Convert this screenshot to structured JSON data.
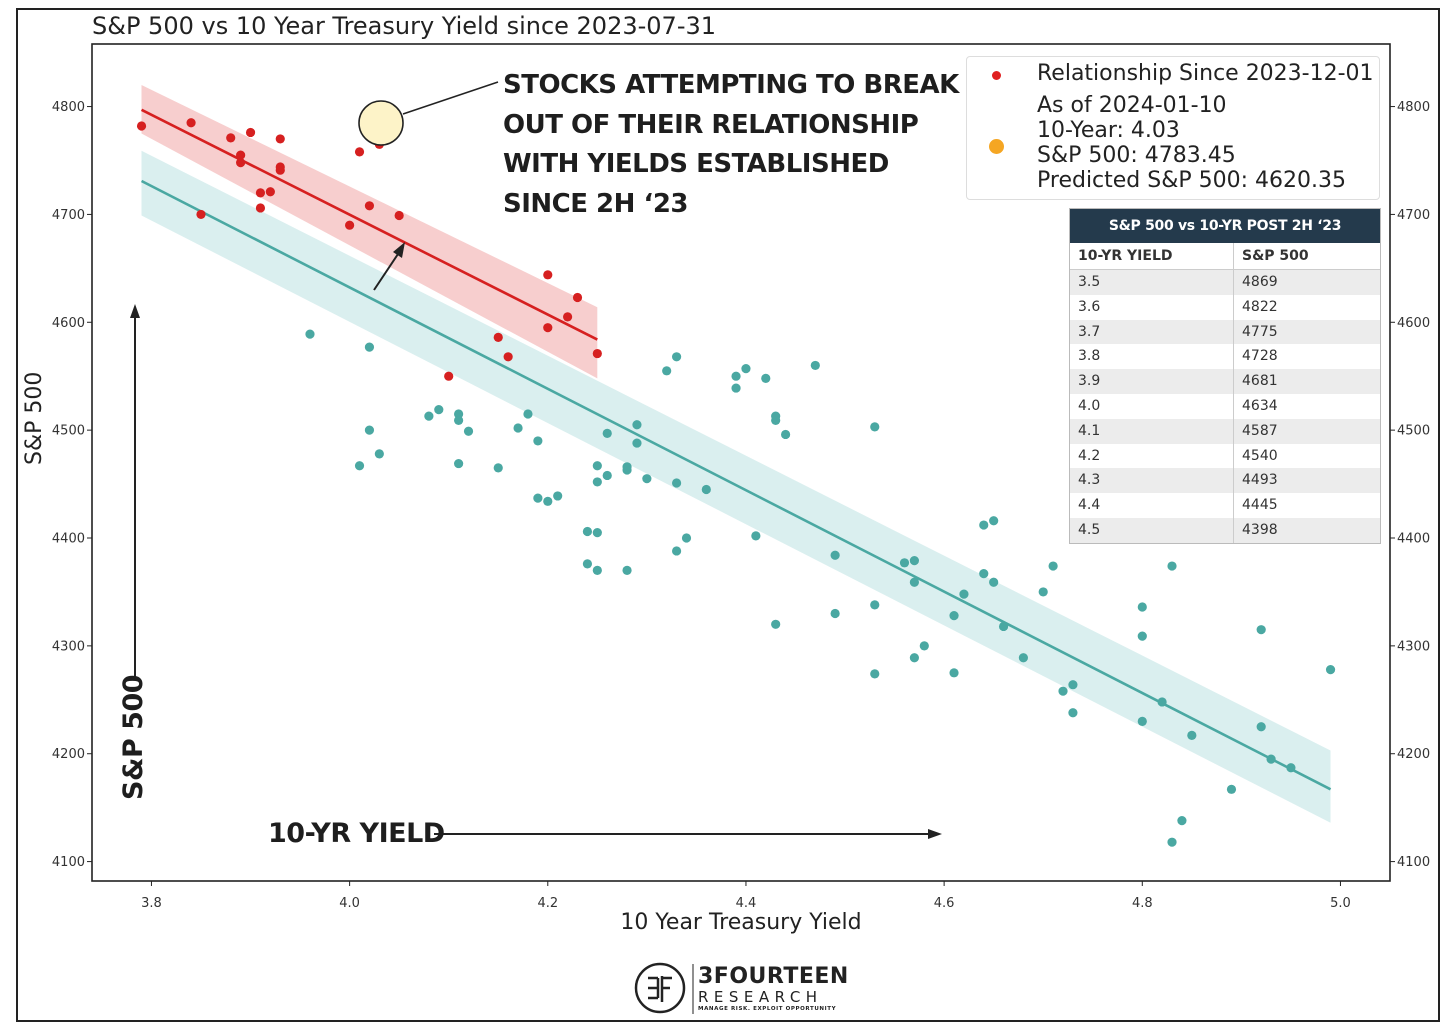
{
  "title": "S&P 500 vs 10 Year Treasury Yield since 2023-07-31",
  "annotation_lines": [
    "STOCKS ATTEMPTING TO BREAK",
    "OUT OF THEIR RELATIONSHIP",
    "WITH YIELDS ESTABLISHED",
    "SINCE 2H ‘23"
  ],
  "arrow_label_x": "10-YR YIELD",
  "arrow_label_y": "S&P 500",
  "legend": {
    "red_label": "Relationship Since 2023-12-01",
    "lines": [
      "As of 2024-01-10",
      "10-Year: 4.03",
      "S&P 500: 4783.45",
      "Predicted S&P 500: 4620.35"
    ]
  },
  "table": {
    "title": "S&P 500 vs 10-YR POST 2H ‘23",
    "headers": [
      "10-YR YIELD",
      "S&P 500"
    ],
    "rows": [
      [
        "3.5",
        "4869"
      ],
      [
        "3.6",
        "4822"
      ],
      [
        "3.7",
        "4775"
      ],
      [
        "3.8",
        "4728"
      ],
      [
        "3.9",
        "4681"
      ],
      [
        "4.0",
        "4634"
      ],
      [
        "4.1",
        "4587"
      ],
      [
        "4.2",
        "4540"
      ],
      [
        "4.3",
        "4493"
      ],
      [
        "4.4",
        "4445"
      ],
      [
        "4.5",
        "4398"
      ]
    ]
  },
  "logo": {
    "name": "3FOURTEEN",
    "sub": "RESEARCH",
    "tagline": "MANAGE RISK. EXPLOIT OPPORTUNITY"
  },
  "chart_data": {
    "type": "scatter",
    "title": "S&P 500 vs 10 Year Treasury Yield since 2023-07-31",
    "xlabel": "10 Year Treasury Yield",
    "ylabel": "S&P 500",
    "xlim": [
      3.74,
      5.05
    ],
    "ylim": [
      4082,
      4858
    ],
    "xticks": [
      3.8,
      4.0,
      4.2,
      4.4,
      4.6,
      4.8,
      5.0
    ],
    "yticks": [
      4100,
      4200,
      4300,
      4400,
      4500,
      4600,
      4700,
      4800
    ],
    "grid": false,
    "legend_position": "top-right",
    "colors": {
      "teal": "#4aa8a2",
      "red": "#d62020",
      "orange": "#f5a623",
      "teal_band": "#cdeaea",
      "red_band": "#f6c6c6"
    },
    "series": [
      {
        "name": "",
        "color": "#4aa8a2",
        "points": [
          [
            3.96,
            4589
          ],
          [
            4.02,
            4577
          ],
          [
            4.02,
            4500
          ],
          [
            4.01,
            4467
          ],
          [
            4.03,
            4478
          ],
          [
            4.08,
            4513
          ],
          [
            4.09,
            4519
          ],
          [
            4.11,
            4509
          ],
          [
            4.11,
            4515
          ],
          [
            4.12,
            4499
          ],
          [
            4.11,
            4469
          ],
          [
            4.15,
            4465
          ],
          [
            4.17,
            4502
          ],
          [
            4.18,
            4515
          ],
          [
            4.19,
            4490
          ],
          [
            4.19,
            4437
          ],
          [
            4.2,
            4434
          ],
          [
            4.21,
            4439
          ],
          [
            4.24,
            4406
          ],
          [
            4.24,
            4376
          ],
          [
            4.25,
            4405
          ],
          [
            4.25,
            4370
          ],
          [
            4.25,
            4452
          ],
          [
            4.25,
            4467
          ],
          [
            4.26,
            4497
          ],
          [
            4.26,
            4458
          ],
          [
            4.28,
            4463
          ],
          [
            4.28,
            4466
          ],
          [
            4.28,
            4370
          ],
          [
            4.29,
            4505
          ],
          [
            4.29,
            4488
          ],
          [
            4.3,
            4455
          ],
          [
            4.32,
            4555
          ],
          [
            4.33,
            4568
          ],
          [
            4.33,
            4451
          ],
          [
            4.33,
            4388
          ],
          [
            4.34,
            4400
          ],
          [
            4.36,
            4445
          ],
          [
            4.39,
            4550
          ],
          [
            4.39,
            4539
          ],
          [
            4.4,
            4557
          ],
          [
            4.41,
            4402
          ],
          [
            4.42,
            4548
          ],
          [
            4.43,
            4513
          ],
          [
            4.43,
            4509
          ],
          [
            4.43,
            4320
          ],
          [
            4.44,
            4496
          ],
          [
            4.47,
            4560
          ],
          [
            4.49,
            4384
          ],
          [
            4.49,
            4330
          ],
          [
            4.53,
            4503
          ],
          [
            4.53,
            4338
          ],
          [
            4.53,
            4274
          ],
          [
            4.56,
            4377
          ],
          [
            4.57,
            4379
          ],
          [
            4.57,
            4359
          ],
          [
            4.57,
            4289
          ],
          [
            4.58,
            4300
          ],
          [
            4.61,
            4275
          ],
          [
            4.61,
            4328
          ],
          [
            4.62,
            4348
          ],
          [
            4.64,
            4412
          ],
          [
            4.64,
            4367
          ],
          [
            4.65,
            4416
          ],
          [
            4.65,
            4359
          ],
          [
            4.66,
            4318
          ],
          [
            4.68,
            4289
          ],
          [
            4.7,
            4350
          ],
          [
            4.71,
            4374
          ],
          [
            4.72,
            4258
          ],
          [
            4.73,
            4264
          ],
          [
            4.73,
            4238
          ],
          [
            4.8,
            4230
          ],
          [
            4.8,
            4336
          ],
          [
            4.8,
            4309
          ],
          [
            4.82,
            4248
          ],
          [
            4.83,
            4374
          ],
          [
            4.83,
            4118
          ],
          [
            4.84,
            4138
          ],
          [
            4.85,
            4217
          ],
          [
            4.89,
            4167
          ],
          [
            4.92,
            4315
          ],
          [
            4.92,
            4225
          ],
          [
            4.93,
            4195
          ],
          [
            4.95,
            4187
          ],
          [
            4.99,
            4278
          ]
        ]
      },
      {
        "name": "Relationship Since 2023-12-01",
        "color": "#d62020",
        "points": [
          [
            3.79,
            4782
          ],
          [
            3.84,
            4785
          ],
          [
            3.85,
            4700
          ],
          [
            3.88,
            4771
          ],
          [
            3.89,
            4748
          ],
          [
            3.89,
            4755
          ],
          [
            3.9,
            4776
          ],
          [
            3.91,
            4720
          ],
          [
            3.91,
            4706
          ],
          [
            3.92,
            4721
          ],
          [
            3.93,
            4744
          ],
          [
            3.93,
            4741
          ],
          [
            3.93,
            4770
          ],
          [
            4.0,
            4690
          ],
          [
            4.01,
            4758
          ],
          [
            4.02,
            4708
          ],
          [
            4.03,
            4765
          ],
          [
            4.05,
            4699
          ],
          [
            4.1,
            4550
          ],
          [
            4.15,
            4586
          ],
          [
            4.16,
            4568
          ],
          [
            4.2,
            4595
          ],
          [
            4.2,
            4644
          ],
          [
            4.22,
            4605
          ],
          [
            4.23,
            4623
          ],
          [
            4.25,
            4571
          ]
        ]
      },
      {
        "name": "As of 2024-01-10",
        "color": "#f5a623",
        "points": [
          [
            4.03,
            4783.45
          ]
        ]
      }
    ],
    "regression_lines": [
      {
        "name": "",
        "x": [
          3.79,
          4.99
        ],
        "y": [
          4731,
          4167
        ],
        "band": [
          [
            3.79,
            4699,
            4759
          ],
          [
            4.99,
            4136,
            4203
          ]
        ],
        "color": "#4aa8a2"
      },
      {
        "name": "Relationship Since 2023-12-01",
        "x": [
          3.79,
          4.25
        ],
        "y": [
          4797,
          4584
        ],
        "band": [
          [
            3.79,
            4775,
            4820
          ],
          [
            4.25,
            4548,
            4614
          ]
        ],
        "color": "#d62020"
      }
    ]
  }
}
